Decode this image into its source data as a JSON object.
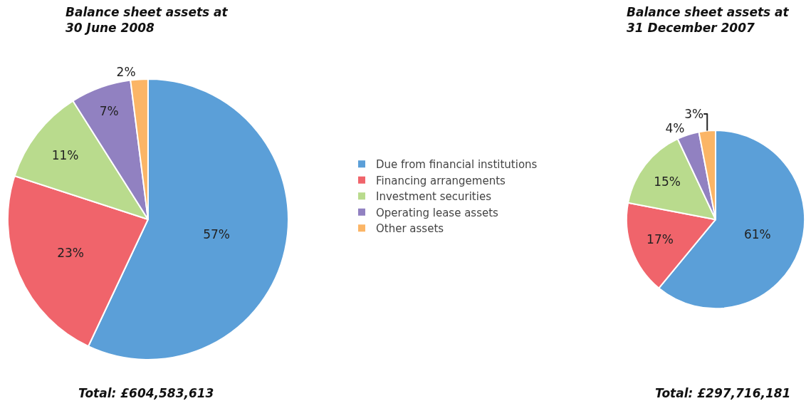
{
  "chart_data": [
    {
      "type": "pie",
      "title": "Balance sheet assets at 30 June 2008",
      "categories": [
        "Due from financial institutions",
        "Financing arrangements",
        "Investment securities",
        "Operating lease assets",
        "Other assets"
      ],
      "values": [
        57,
        23,
        11,
        7,
        2
      ],
      "value_labels": [
        "57%",
        "23%",
        "11%",
        "7%",
        "2%"
      ],
      "colors": [
        "#5b9fd8",
        "#f0646b",
        "#b9db8d",
        "#9181c1",
        "#fbb566"
      ],
      "legend": "right",
      "annotations": [
        "Total: £604,583,613"
      ]
    },
    {
      "type": "pie",
      "title": "Balance sheet assets at 31 December 2007",
      "values": [
        61,
        17,
        15,
        4,
        3
      ],
      "value_labels": [
        "61%",
        "17%",
        "15%",
        "4%",
        "3%"
      ],
      "colors": [
        "#5b9fd8",
        "#f0646b",
        "#b9db8d",
        "#9181c1",
        "#fbb566"
      ],
      "legend": false,
      "annotations": [
        "Total: £297,716,181"
      ]
    }
  ]
}
